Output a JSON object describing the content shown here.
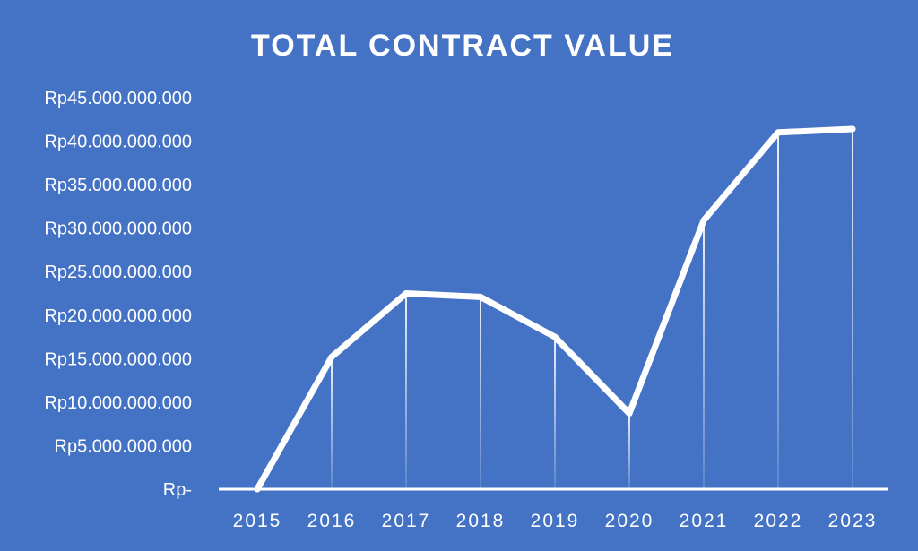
{
  "chart_data": {
    "type": "line",
    "title": "TOTAL CONTRACT VALUE",
    "xlabel": "",
    "ylabel": "",
    "categories": [
      "2015",
      "2016",
      "2017",
      "2018",
      "2019",
      "2020",
      "2021",
      "2022",
      "2023"
    ],
    "series": [
      {
        "values": [
          0,
          15200000000,
          22500000000,
          22100000000,
          17500000000,
          8700000000,
          30900000000,
          41000000000,
          41400000000
        ]
      }
    ],
    "ylim": [
      0,
      45000000000
    ],
    "yticks": [
      0,
      5000000000,
      10000000000,
      15000000000,
      20000000000,
      25000000000,
      30000000000,
      35000000000,
      40000000000,
      45000000000
    ],
    "ytick_labels": [
      "Rp-",
      "Rp5.000.000.000",
      "Rp10.000.000.000",
      "Rp15.000.000.000",
      "Rp20.000.000.000",
      "Rp25.000.000.000",
      "Rp30.000.000.000",
      "Rp35.000.000.000",
      "Rp40.000.000.000",
      "Rp45.000.000.000"
    ],
    "grid": false,
    "drop_lines": true,
    "legend": "none",
    "colors": {
      "background": "#4472c4",
      "line": "#ffffff",
      "text": "#ffffff"
    }
  }
}
